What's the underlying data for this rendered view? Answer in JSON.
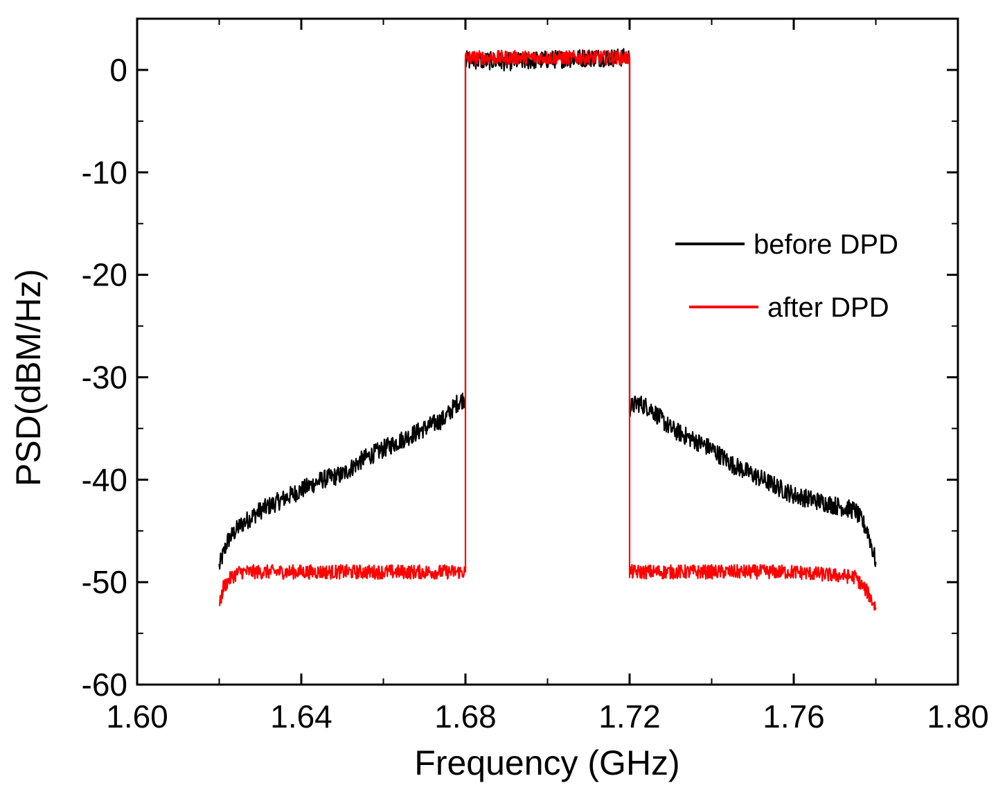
{
  "chart_data": {
    "type": "line",
    "title": "",
    "xlabel": "Frequency (GHz)",
    "ylabel": "PSD(dBM/Hz)",
    "xlim": [
      1.6,
      1.8
    ],
    "ylim": [
      -60,
      5
    ],
    "x_ticks": [
      1.6,
      1.64,
      1.68,
      1.72,
      1.76,
      1.8
    ],
    "x_tick_labels": [
      "1.60",
      "1.64",
      "1.68",
      "1.72",
      "1.76",
      "1.80"
    ],
    "x_minor_step": 0.02,
    "y_ticks": [
      0,
      -10,
      -20,
      -30,
      -40,
      -50,
      -60
    ],
    "y_tick_labels": [
      "0",
      "-10",
      "-20",
      "-30",
      "-40",
      "-50",
      "-60"
    ],
    "y_minor_step": 5,
    "grid": false,
    "legend_position": "right",
    "series": [
      {
        "name": "before DPD",
        "color": "#000000",
        "x": [
          1.62,
          1.622,
          1.625,
          1.63,
          1.635,
          1.64,
          1.645,
          1.65,
          1.655,
          1.66,
          1.665,
          1.67,
          1.675,
          1.678,
          1.68,
          1.68,
          1.69,
          1.7,
          1.71,
          1.72,
          1.72,
          1.722,
          1.725,
          1.73,
          1.735,
          1.74,
          1.745,
          1.75,
          1.755,
          1.76,
          1.765,
          1.77,
          1.775,
          1.778,
          1.78
        ],
        "values": [
          -48.5,
          -46.0,
          -44.5,
          -43.0,
          -42.0,
          -41.0,
          -40.0,
          -39.5,
          -38.0,
          -37.0,
          -36.0,
          -35.0,
          -34.0,
          -32.5,
          -32.0,
          1.0,
          0.8,
          1.0,
          1.2,
          1.2,
          -33.0,
          -32.5,
          -33.0,
          -35.0,
          -36.0,
          -37.0,
          -38.5,
          -39.5,
          -40.5,
          -41.5,
          -42.0,
          -42.5,
          -43.0,
          -45.0,
          -48.0
        ],
        "noise": 0.9
      },
      {
        "name": "after DPD",
        "color": "#ff0000",
        "x": [
          1.62,
          1.621,
          1.623,
          1.625,
          1.64,
          1.66,
          1.679,
          1.68,
          1.68,
          1.69,
          1.7,
          1.71,
          1.72,
          1.72,
          1.722,
          1.74,
          1.76,
          1.775,
          1.778,
          1.78
        ],
        "values": [
          -52.5,
          -50.5,
          -49.5,
          -49.0,
          -49.0,
          -49.0,
          -49.0,
          -49.0,
          1.2,
          1.2,
          1.2,
          1.2,
          1.2,
          -49.0,
          -49.0,
          -49.0,
          -49.0,
          -49.5,
          -51.0,
          -52.5
        ],
        "noise": 0.7
      }
    ]
  }
}
